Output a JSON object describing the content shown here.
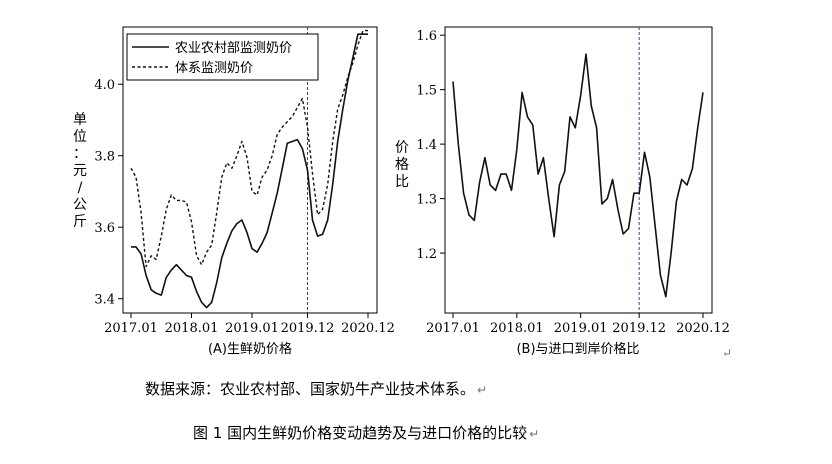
{
  "chart_data": [
    {
      "type": "line",
      "panel_label": "(A)生鲜奶价格",
      "ylabel": "单位：元/公斤",
      "x_ticks": [
        "2017.01",
        "2018.01",
        "2019.01",
        "2019.12",
        "2020.12"
      ],
      "x_range": [
        "2017.01",
        "2020.12"
      ],
      "ylim": [
        3.36,
        4.16
      ],
      "y_ticks": [
        "3.4",
        "3.6",
        "3.8",
        "4.0"
      ],
      "grid": false,
      "legend_position": "top-left",
      "reference_line": {
        "x": "2019.12",
        "style": "dashed",
        "color": "#2a3fd0"
      },
      "series": [
        {
          "name": "农业农村部监测奶价",
          "style": "solid",
          "x": [
            "2017.01",
            "2017.02",
            "2017.03",
            "2017.04",
            "2017.05",
            "2017.06",
            "2017.07",
            "2017.08",
            "2017.09",
            "2017.10",
            "2017.11",
            "2017.12",
            "2018.01",
            "2018.02",
            "2018.03",
            "2018.04",
            "2018.05",
            "2018.06",
            "2018.07",
            "2018.08",
            "2018.09",
            "2018.10",
            "2018.11",
            "2018.12",
            "2019.01",
            "2019.02",
            "2019.03",
            "2019.04",
            "2019.05",
            "2019.06",
            "2019.07",
            "2019.08",
            "2019.09",
            "2019.10",
            "2019.11",
            "2019.12",
            "2020.01",
            "2020.02",
            "2020.03",
            "2020.04",
            "2020.05",
            "2020.06",
            "2020.07",
            "2020.08",
            "2020.09",
            "2020.10",
            "2020.11",
            "2020.12"
          ],
          "values": [
            3.545,
            3.545,
            3.525,
            3.465,
            3.425,
            3.415,
            3.41,
            3.46,
            3.48,
            3.495,
            3.48,
            3.465,
            3.46,
            3.42,
            3.39,
            3.375,
            3.39,
            3.445,
            3.515,
            3.555,
            3.59,
            3.61,
            3.62,
            3.585,
            3.54,
            3.53,
            3.555,
            3.585,
            3.64,
            3.695,
            3.765,
            3.835,
            3.84,
            3.845,
            3.82,
            3.76,
            3.62,
            3.575,
            3.58,
            3.62,
            3.72,
            3.84,
            3.93,
            4.01,
            4.075,
            4.14,
            4.14,
            4.14
          ]
        },
        {
          "name": "体系监测奶价",
          "style": "dotted",
          "x": [
            "2017.01",
            "2017.02",
            "2017.03",
            "2017.04",
            "2017.05",
            "2017.06",
            "2017.07",
            "2017.08",
            "2017.09",
            "2017.10",
            "2017.11",
            "2017.12",
            "2018.01",
            "2018.02",
            "2018.03",
            "2018.04",
            "2018.05",
            "2018.06",
            "2018.07",
            "2018.08",
            "2018.09",
            "2018.10",
            "2018.11",
            "2018.12",
            "2019.01",
            "2019.02",
            "2019.03",
            "2019.04",
            "2019.05",
            "2019.06",
            "2019.07",
            "2019.08",
            "2019.09",
            "2019.10",
            "2019.11",
            "2019.12",
            "2020.01",
            "2020.02",
            "2020.03",
            "2020.04",
            "2020.05",
            "2020.06",
            "2020.07",
            "2020.08",
            "2020.09",
            "2020.10",
            "2020.11",
            "2020.12"
          ],
          "values": [
            3.765,
            3.74,
            3.64,
            3.49,
            3.52,
            3.51,
            3.575,
            3.65,
            3.69,
            3.675,
            3.675,
            3.67,
            3.615,
            3.52,
            3.495,
            3.53,
            3.55,
            3.64,
            3.74,
            3.78,
            3.765,
            3.8,
            3.84,
            3.795,
            3.7,
            3.69,
            3.74,
            3.76,
            3.8,
            3.86,
            3.88,
            3.895,
            3.91,
            3.935,
            3.96,
            3.88,
            3.75,
            3.635,
            3.65,
            3.72,
            3.84,
            3.93,
            3.97,
            4.02,
            4.06,
            4.11,
            4.15,
            4.15
          ]
        }
      ]
    },
    {
      "type": "line",
      "panel_label": "(B)与进口到岸价格比",
      "ylabel": "价格比",
      "x_ticks": [
        "2017.01",
        "2018.01",
        "2019.01",
        "2019.12",
        "2020.12"
      ],
      "x_range": [
        "2017.01",
        "2020.12"
      ],
      "ylim": [
        1.09,
        1.615
      ],
      "y_ticks": [
        "1.2",
        "1.3",
        "1.4",
        "1.5",
        "1.6"
      ],
      "grid": false,
      "reference_line": {
        "x": "2019.12",
        "style": "dashed",
        "color": "#2a3fd0"
      },
      "series": [
        {
          "style": "solid",
          "x": [
            "2017.01",
            "2017.02",
            "2017.03",
            "2017.04",
            "2017.05",
            "2017.06",
            "2017.07",
            "2017.08",
            "2017.09",
            "2017.10",
            "2017.11",
            "2017.12",
            "2018.01",
            "2018.02",
            "2018.03",
            "2018.04",
            "2018.05",
            "2018.06",
            "2018.07",
            "2018.08",
            "2018.09",
            "2018.10",
            "2018.11",
            "2018.12",
            "2019.01",
            "2019.02",
            "2019.03",
            "2019.04",
            "2019.05",
            "2019.06",
            "2019.07",
            "2019.08",
            "2019.09",
            "2019.10",
            "2019.11",
            "2019.12",
            "2020.01",
            "2020.02",
            "2020.03",
            "2020.04",
            "2020.05",
            "2020.06",
            "2020.07",
            "2020.08",
            "2020.09",
            "2020.10",
            "2020.11",
            "2020.12"
          ],
          "values": [
            1.515,
            1.4,
            1.31,
            1.27,
            1.26,
            1.33,
            1.375,
            1.325,
            1.315,
            1.345,
            1.345,
            1.315,
            1.39,
            1.495,
            1.45,
            1.435,
            1.345,
            1.375,
            1.3,
            1.23,
            1.325,
            1.35,
            1.45,
            1.43,
            1.49,
            1.565,
            1.47,
            1.43,
            1.29,
            1.3,
            1.335,
            1.28,
            1.235,
            1.245,
            1.31,
            1.31,
            1.385,
            1.34,
            1.25,
            1.16,
            1.12,
            1.2,
            1.295,
            1.335,
            1.325,
            1.355,
            1.43,
            1.495
          ]
        }
      ]
    }
  ],
  "source_text": "数据来源：农业农村部、国家奶牛产业技术体系。",
  "figure_title": "图 1   国内生鲜奶价格变动趋势及与进口价格的比较",
  "return_mark": "↵"
}
